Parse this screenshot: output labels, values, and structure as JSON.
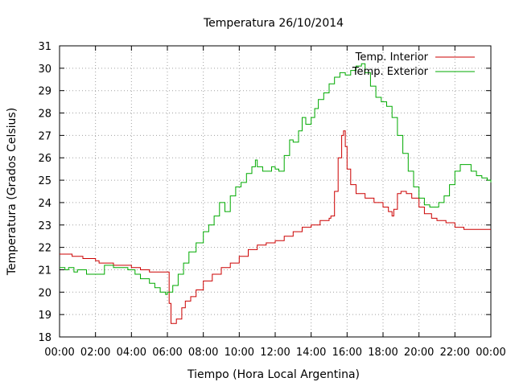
{
  "chart_data": {
    "type": "line",
    "title": "Temperatura 26/10/2014",
    "xlabel": "Tiempo (Hora Local Argentina)",
    "ylabel": "Temperatura (Grados Celsius)",
    "xlim": [
      0,
      24
    ],
    "ylim": [
      18,
      31
    ],
    "x_ticks": [
      "00:00",
      "02:00",
      "04:00",
      "06:00",
      "08:00",
      "10:00",
      "12:00",
      "14:00",
      "16:00",
      "18:00",
      "20:00",
      "22:00",
      "00:00"
    ],
    "y_ticks": [
      18,
      19,
      20,
      21,
      22,
      23,
      24,
      25,
      26,
      27,
      28,
      29,
      30,
      31
    ],
    "grid": true,
    "legend_position": "top-right",
    "series": [
      {
        "name": "Temp. Interior",
        "color": "#cc0000",
        "x": [
          0,
          0.6,
          0.7,
          1.3,
          1.5,
          2.0,
          2.2,
          2.5,
          3.0,
          3.5,
          4.0,
          4.5,
          5.0,
          5.5,
          5.9,
          6.0,
          6.1,
          6.2,
          6.3,
          6.5,
          6.8,
          7.0,
          7.3,
          7.6,
          8.0,
          8.5,
          9.0,
          9.5,
          10.0,
          10.5,
          11.0,
          11.5,
          12.0,
          12.5,
          13.0,
          13.5,
          14.0,
          14.5,
          15.0,
          15.1,
          15.3,
          15.5,
          15.7,
          15.8,
          15.9,
          16.0,
          16.2,
          16.5,
          17.0,
          17.5,
          18.0,
          18.3,
          18.5,
          18.6,
          18.8,
          19.0,
          19.3,
          19.6,
          20.0,
          20.3,
          20.7,
          21.0,
          21.5,
          22.0,
          22.5,
          23.0,
          23.5,
          24.0
        ],
        "values": [
          21.7,
          21.7,
          21.6,
          21.5,
          21.5,
          21.4,
          21.3,
          21.3,
          21.2,
          21.2,
          21.1,
          21.0,
          20.9,
          20.9,
          20.9,
          20.9,
          19.5,
          18.6,
          18.6,
          18.8,
          19.3,
          19.6,
          19.8,
          20.1,
          20.5,
          20.8,
          21.1,
          21.3,
          21.6,
          21.9,
          22.1,
          22.2,
          22.3,
          22.5,
          22.7,
          22.9,
          23.0,
          23.2,
          23.3,
          23.4,
          24.5,
          26.0,
          27.0,
          27.2,
          26.5,
          25.5,
          24.8,
          24.4,
          24.2,
          24.0,
          23.8,
          23.6,
          23.4,
          23.7,
          24.4,
          24.5,
          24.4,
          24.2,
          23.8,
          23.5,
          23.3,
          23.2,
          23.1,
          22.9,
          22.8,
          22.8,
          22.8,
          22.8
        ]
      },
      {
        "name": "Temp. Exterior",
        "color": "#00aa00",
        "x": [
          0,
          0.3,
          0.5,
          0.8,
          1.0,
          1.5,
          2.0,
          2.5,
          3.0,
          3.3,
          3.8,
          4.2,
          4.5,
          5.0,
          5.3,
          5.6,
          5.9,
          6.0,
          6.3,
          6.6,
          6.9,
          7.2,
          7.6,
          8.0,
          8.3,
          8.6,
          8.9,
          9.2,
          9.5,
          9.8,
          10.1,
          10.4,
          10.7,
          10.9,
          11.0,
          11.3,
          11.6,
          11.8,
          12.0,
          12.2,
          12.5,
          12.8,
          13.0,
          13.3,
          13.5,
          13.7,
          14.0,
          14.2,
          14.4,
          14.7,
          15.0,
          15.3,
          15.6,
          15.9,
          16.2,
          16.5,
          16.8,
          17.0,
          17.3,
          17.6,
          17.9,
          18.2,
          18.5,
          18.8,
          19.1,
          19.4,
          19.7,
          20.0,
          20.3,
          20.6,
          20.9,
          21.1,
          21.4,
          21.7,
          22.0,
          22.3,
          22.6,
          22.9,
          23.2,
          23.5,
          23.8,
          24.0
        ],
        "values": [
          21.1,
          21.0,
          21.1,
          20.9,
          21.0,
          20.8,
          20.8,
          21.2,
          21.1,
          21.1,
          21.0,
          20.8,
          20.6,
          20.4,
          20.2,
          20.0,
          19.9,
          20.0,
          20.3,
          20.8,
          21.3,
          21.8,
          22.2,
          22.7,
          23.0,
          23.4,
          24.0,
          23.6,
          24.3,
          24.7,
          24.9,
          25.3,
          25.6,
          25.9,
          25.6,
          25.4,
          25.4,
          25.6,
          25.5,
          25.4,
          26.1,
          26.8,
          26.7,
          27.2,
          27.8,
          27.5,
          27.8,
          28.2,
          28.6,
          28.9,
          29.3,
          29.6,
          29.8,
          29.7,
          29.9,
          30.1,
          30.2,
          29.8,
          29.2,
          28.7,
          28.5,
          28.3,
          27.8,
          27.0,
          26.2,
          25.4,
          24.7,
          24.2,
          23.9,
          23.8,
          23.8,
          24.0,
          24.3,
          24.8,
          25.4,
          25.7,
          25.7,
          25.4,
          25.2,
          25.1,
          25.0,
          24.9
        ]
      }
    ]
  }
}
